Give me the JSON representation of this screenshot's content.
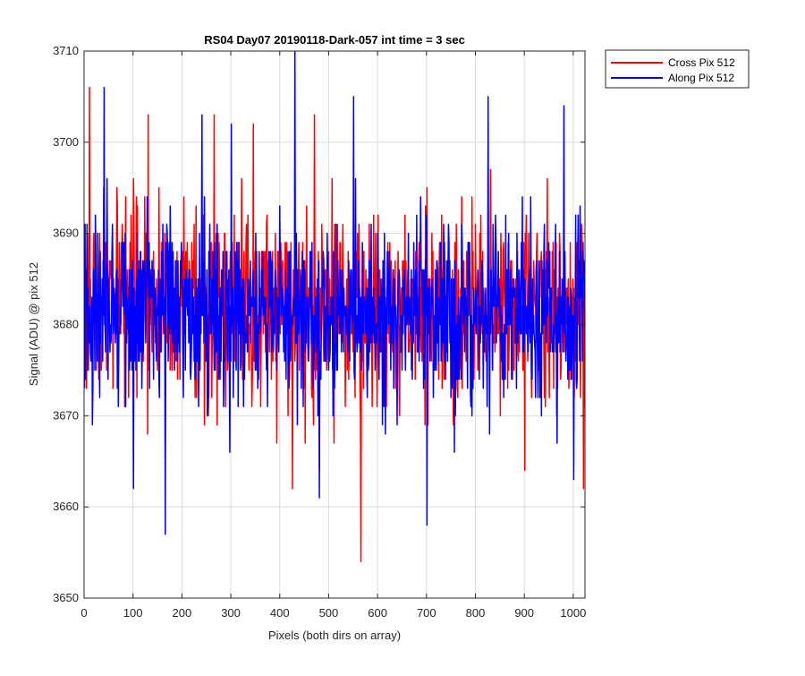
{
  "chart_data": {
    "type": "line",
    "title": "RS04 Day07 20190118-Dark-057 int time = 3 sec",
    "xlabel": "Pixels (both dirs on array)",
    "ylabel": "Signal (ADU) @ pix 512",
    "xlim": [
      0,
      1024
    ],
    "ylim": [
      3650,
      3710
    ],
    "xticks": [
      0,
      100,
      200,
      300,
      400,
      500,
      600,
      700,
      800,
      900,
      1000
    ],
    "yticks": [
      3650,
      3660,
      3670,
      3680,
      3690,
      3700,
      3710
    ],
    "grid": true,
    "legend_position": "outside-top-right",
    "num_points": 1024,
    "series": [
      {
        "name": "Cross Pix 512",
        "color": "#ff0000",
        "mean": 3682,
        "spread": 5,
        "seed": 17,
        "x": [
          10,
          100,
          130,
          165,
          265,
          345,
          360,
          410,
          425,
          470,
          480,
          565,
          700,
          830,
          900,
          1020
        ],
        "y": [
          3706,
          3696,
          3703,
          3664,
          3703,
          3702,
          3671,
          3689,
          3662,
          3703,
          3664,
          3654,
          3695,
          3697,
          3664,
          3662
        ]
      },
      {
        "name": "Along Pix 512",
        "color": "#0000ff",
        "mean": 3681,
        "spread": 5,
        "seed": 91,
        "x": [
          40,
          100,
          165,
          240,
          300,
          430,
          435,
          480,
          550,
          700,
          825,
          980,
          1000
        ],
        "y": [
          3706,
          3662,
          3657,
          3703,
          3702,
          3712,
          3669,
          3661,
          3705,
          3658,
          3705,
          3704,
          3663
        ]
      }
    ]
  }
}
